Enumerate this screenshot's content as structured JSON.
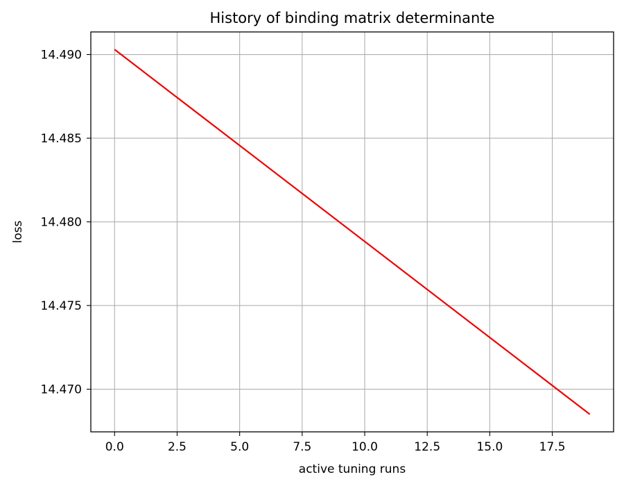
{
  "chart_data": {
    "type": "line",
    "title": "History of binding matrix determinante",
    "xlabel": "active tuning runs",
    "ylabel": "loss",
    "xlim": [
      -0.95,
      19.95
    ],
    "ylim": [
      14.46745,
      14.49135
    ],
    "xticks": [
      0.0,
      2.5,
      5.0,
      7.5,
      10.0,
      12.5,
      15.0,
      17.5
    ],
    "xtick_labels": [
      "0.0",
      "2.5",
      "5.0",
      "7.5",
      "10.0",
      "12.5",
      "15.0",
      "17.5"
    ],
    "yticks": [
      14.47,
      14.475,
      14.48,
      14.485,
      14.49
    ],
    "ytick_labels": [
      "14.470",
      "14.475",
      "14.480",
      "14.485",
      "14.490"
    ],
    "grid": true,
    "series": [
      {
        "color": "#ee0000",
        "x": [
          0,
          19
        ],
        "y": [
          14.4903,
          14.4685
        ]
      }
    ]
  }
}
